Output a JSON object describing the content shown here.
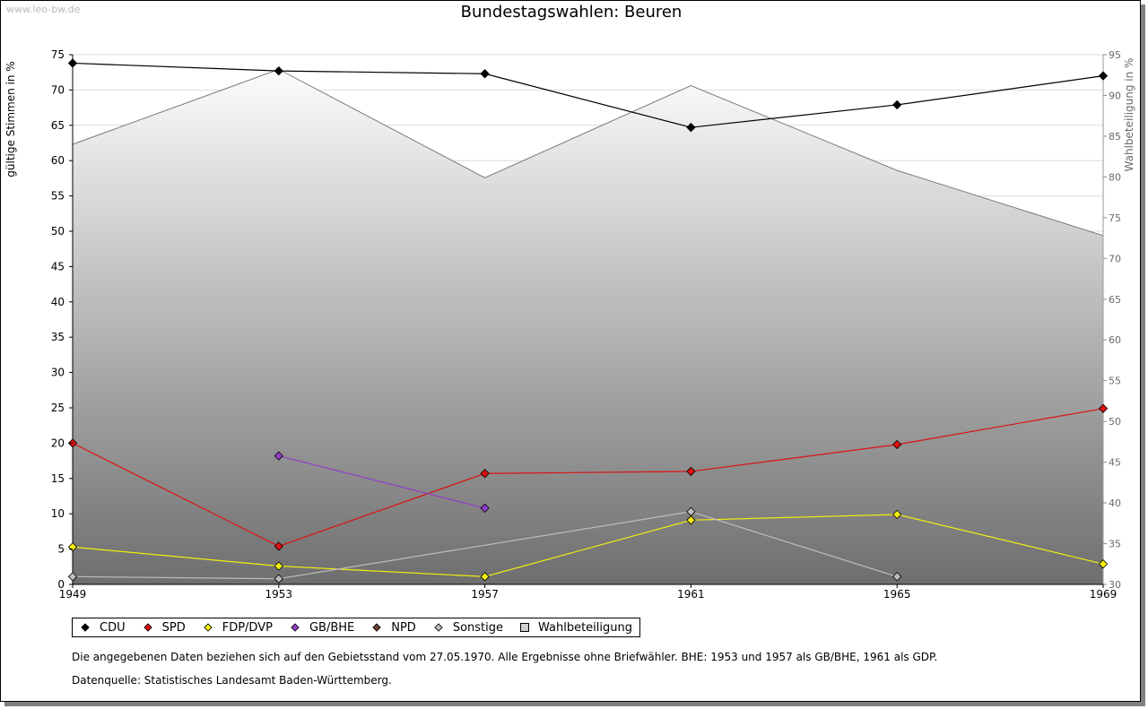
{
  "watermark": "www.leo-bw.de",
  "chart_data": {
    "type": "line",
    "title": "Bundestagswahlen: Beuren",
    "ylabel": "gültige Stimmen in %",
    "y2label": "Wahlbeteiligung in %",
    "xlabel": "",
    "categories": [
      "1949",
      "1953",
      "1957",
      "1961",
      "1965",
      "1969"
    ],
    "ylim": [
      0,
      75
    ],
    "yticks": [
      "0",
      "5",
      "10",
      "15",
      "20",
      "25",
      "30",
      "35",
      "40",
      "45",
      "50",
      "55",
      "60",
      "65",
      "70",
      "75"
    ],
    "y2lim": [
      30,
      95
    ],
    "y2ticks": [
      "30",
      "35",
      "40",
      "45",
      "50",
      "55",
      "60",
      "65",
      "70",
      "75",
      "80",
      "85",
      "90",
      "95"
    ],
    "series": [
      {
        "name": "CDU",
        "color": "#000000",
        "values": [
          73.8,
          72.7,
          72.3,
          64.7,
          67.9,
          72.0
        ]
      },
      {
        "name": "SPD",
        "color": "#dd1111",
        "values": [
          20.0,
          5.4,
          15.7,
          16.0,
          19.8,
          24.9
        ]
      },
      {
        "name": "FDP/DVP",
        "color": "#f2ee10",
        "values": [
          5.3,
          2.6,
          1.1,
          9.1,
          9.9,
          2.9
        ]
      },
      {
        "name": "GB/BHE",
        "color": "#8e3fc9",
        "values": [
          null,
          18.2,
          10.8,
          null,
          null,
          null
        ]
      },
      {
        "name": "NPD",
        "color": "#6b4436",
        "values": [
          null,
          null,
          null,
          null,
          null,
          null
        ]
      },
      {
        "name": "Sonstige",
        "color": "#bdbdbd",
        "values": [
          1.1,
          0.8,
          null,
          10.3,
          1.1,
          null
        ]
      }
    ],
    "turnout": {
      "name": "Wahlbeteiligung",
      "color": "#cfcfcf",
      "values": [
        84.0,
        93.2,
        79.9,
        91.2,
        80.8,
        72.8
      ]
    }
  },
  "notes": {
    "line1": "Die angegebenen Daten beziehen sich auf den Gebietsstand vom 27.05.1970. Alle Ergebnisse ohne Briefwähler. BHE: 1953 und 1957 als GB/BHE, 1961 als GDP.",
    "line2": "Datenquelle: Statistisches Landesamt Baden-Württemberg."
  }
}
